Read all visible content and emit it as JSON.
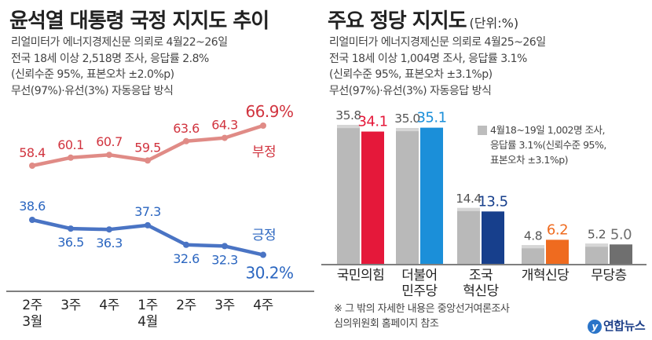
{
  "left": {
    "title": "윤석열 대통령 국정 지지도 추이",
    "meta": [
      "리얼미터가 에너지경제신문 의뢰로 4월22~26일",
      "전국 18세 이상 2,518명 조사, 응답률 2.8%",
      "(신뢰수준 95%, 표본오차 ±2.0%p)",
      "무선(97%)·유선(3%) 자동응답  방식"
    ]
  },
  "right": {
    "title": "주요 정당 지지도",
    "unit": "(단위:%)",
    "meta": [
      "리얼미터가 에너지경제신문 의뢰로 4월25~26일",
      "전국 18세 이상 1,004명 조사, 응답률 3.1%",
      "(신뢰수준 95%, 표본오차 ±3.1%p)",
      "무선(97%)·유선(3%) 자동응답  방식"
    ],
    "legend": [
      "4월18~19일 1,002명 조사,",
      "응답률 3.1%(신뢰수준 95%,",
      "표본오차 ±3.1%p)"
    ],
    "footnote": [
      "※ 그 밖의 자세한 내용은 중앙선거여론조사",
      "   심의위원회 홈페이지 참조"
    ],
    "logo": "연합뉴스"
  },
  "colors": {
    "negative": "#e08b86",
    "negative_text": "#d1343f",
    "positive": "#4a74c4",
    "positive_text": "#2b66c0",
    "prev_bar": "#b9b9b9",
    "ppp": "#e5183a",
    "dp": "#1b8fd9",
    "rebuild": "#173f8c",
    "reform": "#ef6b1f",
    "none": "#6f6f6f"
  },
  "chart_data": [
    {
      "type": "line",
      "x": [
        "2주\n3월",
        "3주",
        "4주",
        "1주\n4월",
        "2주",
        "3주",
        "4주"
      ],
      "series": [
        {
          "name": "부정",
          "values": [
            58.4,
            60.1,
            60.7,
            59.5,
            63.6,
            64.3,
            66.9
          ],
          "labels": [
            "58.4",
            "60.1",
            "60.7",
            "59.5",
            "63.6",
            "64.3",
            "66.9%"
          ]
        },
        {
          "name": "긍정",
          "values": [
            38.6,
            36.5,
            36.3,
            37.3,
            32.6,
            32.3,
            30.2
          ],
          "labels": [
            "38.6",
            "36.5",
            "36.3",
            "37.3",
            "32.6",
            "32.3",
            "30.2%"
          ]
        }
      ],
      "title": "윤석열 대통령 국정 지지도 추이"
    },
    {
      "type": "bar",
      "categories": [
        "국민의힘",
        "더불어\n민주당",
        "조국\n혁신당",
        "개혁신당",
        "무당층"
      ],
      "series": [
        {
          "name": "4월18~19일",
          "values": [
            35.8,
            35.0,
            14.4,
            4.8,
            5.2
          ]
        },
        {
          "name": "4월25~26일",
          "values": [
            34.1,
            35.1,
            13.5,
            6.2,
            5.0
          ]
        }
      ],
      "title": "주요 정당 지지도",
      "ylabel": "(단위:%)"
    }
  ]
}
